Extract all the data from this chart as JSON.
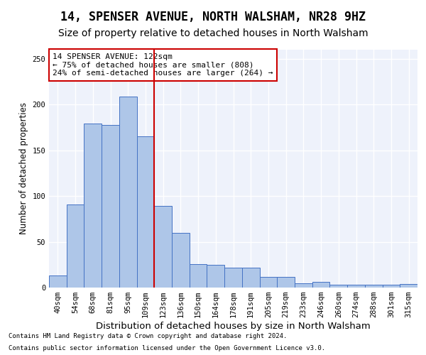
{
  "title1": "14, SPENSER AVENUE, NORTH WALSHAM, NR28 9HZ",
  "title2": "Size of property relative to detached houses in North Walsham",
  "xlabel": "Distribution of detached houses by size in North Walsham",
  "ylabel": "Number of detached properties",
  "bins": [
    "40sqm",
    "54sqm",
    "68sqm",
    "81sqm",
    "95sqm",
    "109sqm",
    "123sqm",
    "136sqm",
    "150sqm",
    "164sqm",
    "178sqm",
    "191sqm",
    "205sqm",
    "219sqm",
    "233sqm",
    "246sqm",
    "260sqm",
    "274sqm",
    "288sqm",
    "301sqm",
    "315sqm"
  ],
  "values": [
    13,
    91,
    179,
    178,
    209,
    165,
    89,
    60,
    26,
    25,
    22,
    22,
    12,
    12,
    5,
    6,
    3,
    3,
    3,
    3,
    4
  ],
  "bar_color": "#aec6e8",
  "bar_edge_color": "#4472c4",
  "vline_color": "#cc0000",
  "annotation_text": "14 SPENSER AVENUE: 122sqm\n← 75% of detached houses are smaller (808)\n24% of semi-detached houses are larger (264) →",
  "annotation_box_color": "white",
  "annotation_box_edge": "#cc0000",
  "footer1": "Contains HM Land Registry data © Crown copyright and database right 2024.",
  "footer2": "Contains public sector information licensed under the Open Government Licence v3.0.",
  "ylim": [
    0,
    260
  ],
  "background_color": "#eef2fb",
  "grid_color": "white",
  "title1_fontsize": 12,
  "title2_fontsize": 10,
  "xlabel_fontsize": 9.5,
  "ylabel_fontsize": 8.5,
  "tick_fontsize": 7.5
}
